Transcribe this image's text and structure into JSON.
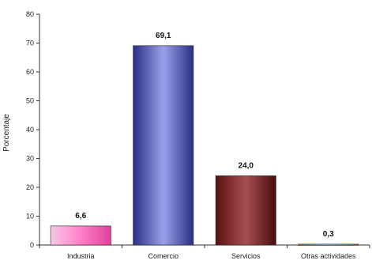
{
  "chart_data": {
    "type": "bar",
    "title_fragment": "",
    "xlabel": "",
    "ylabel": "Porcentaje",
    "ylim": [
      0,
      80
    ],
    "yticks": [
      0,
      10,
      20,
      30,
      40,
      50,
      60,
      70,
      80
    ],
    "categories": [
      "Industria",
      "Comercio",
      "Servicios",
      "Otras actividades"
    ],
    "values": [
      6.6,
      69.1,
      24.0,
      0.3
    ],
    "value_labels": [
      "6,6",
      "69,1",
      "24,0",
      "0,3"
    ],
    "bar_colors": [
      {
        "left": "#f7c8e6",
        "mid": "#ff7fc8",
        "right": "#e0409c"
      },
      {
        "left": "#2a2f88",
        "mid": "#9aa0e8",
        "right": "#2a2f88"
      },
      {
        "left": "#5a1010",
        "mid": "#a85050",
        "right": "#4a0c0c"
      },
      {
        "left": "#c05010",
        "mid": "#ff9a40",
        "right": "#c05010"
      }
    ],
    "grid": false,
    "legend": "none"
  }
}
